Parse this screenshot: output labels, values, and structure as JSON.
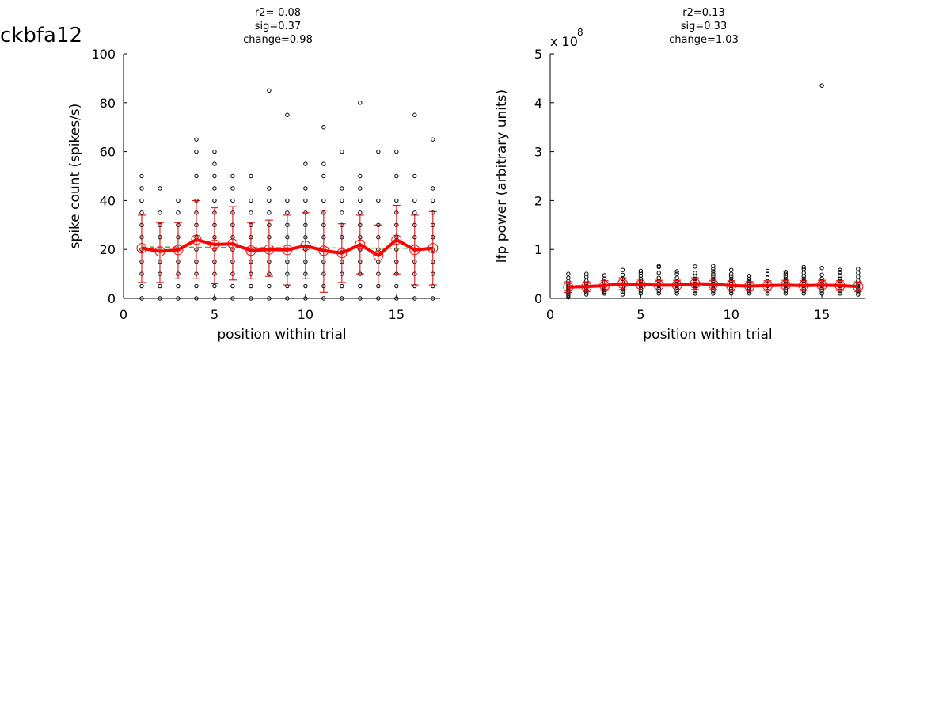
{
  "page": {
    "title": "ckbfa12"
  },
  "chart_data": [
    {
      "type": "scatter",
      "title_lines": [
        "r2=-0.08",
        "sig=0.37",
        "change=0.98"
      ],
      "xlabel": "position within trial",
      "ylabel": "spike count (spikes/s)",
      "exponent_label": "",
      "xlim": [
        0,
        17.4
      ],
      "ylim": [
        0,
        100
      ],
      "xticks": [
        0,
        5,
        10,
        15
      ],
      "yticks": [
        0,
        20,
        40,
        60,
        80,
        100
      ],
      "grid": false,
      "colors": {
        "points": "#000000",
        "mean": "#ff0000",
        "errorbar": "#cc0000",
        "fit": "#33bb33"
      },
      "trials": [
        {
          "x": 1,
          "y": [
            0,
            5,
            10,
            15,
            20,
            25,
            30,
            35,
            40,
            45,
            50
          ]
        },
        {
          "x": 2,
          "y": [
            0,
            5,
            10,
            15,
            20,
            25,
            30,
            35,
            45
          ]
        },
        {
          "x": 3,
          "y": [
            0,
            5,
            10,
            15,
            20,
            25,
            30,
            35,
            40
          ]
        },
        {
          "x": 4,
          "y": [
            0,
            5,
            10,
            15,
            20,
            25,
            30,
            35,
            40,
            50,
            60,
            65
          ]
        },
        {
          "x": 5,
          "y": [
            0,
            5,
            10,
            15,
            20,
            25,
            30,
            35,
            40,
            45,
            50,
            55,
            60
          ]
        },
        {
          "x": 6,
          "y": [
            0,
            5,
            10,
            15,
            20,
            25,
            30,
            35,
            40,
            45,
            50
          ]
        },
        {
          "x": 7,
          "y": [
            0,
            5,
            10,
            15,
            20,
            25,
            30,
            35,
            40,
            50
          ]
        },
        {
          "x": 8,
          "y": [
            0,
            5,
            10,
            15,
            20,
            25,
            30,
            35,
            40,
            45,
            85
          ]
        },
        {
          "x": 9,
          "y": [
            0,
            5,
            10,
            15,
            20,
            25,
            30,
            35,
            40,
            75
          ]
        },
        {
          "x": 10,
          "y": [
            0,
            5,
            10,
            15,
            20,
            25,
            30,
            35,
            40,
            45,
            55
          ]
        },
        {
          "x": 11,
          "y": [
            0,
            5,
            10,
            15,
            20,
            25,
            30,
            35,
            40,
            50,
            55,
            70
          ]
        },
        {
          "x": 12,
          "y": [
            0,
            5,
            10,
            15,
            20,
            25,
            30,
            35,
            40,
            45,
            60
          ]
        },
        {
          "x": 13,
          "y": [
            0,
            5,
            10,
            15,
            20,
            25,
            30,
            35,
            40,
            45,
            50,
            80
          ]
        },
        {
          "x": 14,
          "y": [
            0,
            5,
            10,
            15,
            20,
            25,
            30,
            40,
            60
          ]
        },
        {
          "x": 15,
          "y": [
            0,
            5,
            10,
            15,
            20,
            25,
            30,
            35,
            40,
            50,
            60
          ]
        },
        {
          "x": 16,
          "y": [
            0,
            5,
            10,
            15,
            20,
            25,
            30,
            35,
            40,
            50,
            75
          ]
        },
        {
          "x": 17,
          "y": [
            0,
            5,
            10,
            15,
            20,
            25,
            30,
            35,
            40,
            45,
            65
          ]
        }
      ],
      "mean": {
        "x": [
          1,
          2,
          3,
          4,
          5,
          6,
          7,
          8,
          9,
          10,
          11,
          12,
          13,
          14,
          15,
          16,
          17
        ],
        "y": [
          20.5,
          19.2,
          19.8,
          24.0,
          22.0,
          22.3,
          19.5,
          20.0,
          19.8,
          21.5,
          19.5,
          18.5,
          22.0,
          17.5,
          24.0,
          19.8,
          20.5
        ]
      },
      "error": {
        "low": [
          6.5,
          6.5,
          8.0,
          8.0,
          6.0,
          7.5,
          8.0,
          9.0,
          5.5,
          8.0,
          2.5,
          6.5,
          10.0,
          5.0,
          10.0,
          5.5,
          5.5
        ],
        "high": [
          34.0,
          31.0,
          31.0,
          40.0,
          37.0,
          37.5,
          31.0,
          32.0,
          34.0,
          35.0,
          36.0,
          30.5,
          34.0,
          30.0,
          38.0,
          34.0,
          35.5
        ]
      },
      "fit": {
        "x": [
          1,
          17
        ],
        "y": [
          21.0,
          20.4
        ]
      }
    },
    {
      "type": "scatter",
      "title_lines": [
        "r2=0.13",
        "sig=0.33",
        "change=1.03"
      ],
      "xlabel": "position within trial",
      "ylabel": "lfp power (arbitrary units)",
      "exponent_label": "x 10",
      "exponent": "8",
      "xlim": [
        0,
        17.4
      ],
      "ylim": [
        0,
        5
      ],
      "xticks": [
        0,
        5,
        10,
        15
      ],
      "yticks": [
        0,
        1,
        2,
        3,
        4,
        5
      ],
      "grid": false,
      "colors": {
        "points": "#000000",
        "mean": "#ff0000",
        "errorbar": "#cc0000",
        "fit": "#33bb33"
      },
      "trials": [
        {
          "x": 1,
          "y": [
            0.02,
            0.06,
            0.1,
            0.14,
            0.18,
            0.22,
            0.26,
            0.3,
            0.35,
            0.42,
            0.5
          ]
        },
        {
          "x": 2,
          "y": [
            0.08,
            0.12,
            0.16,
            0.2,
            0.25,
            0.3,
            0.36,
            0.44,
            0.5
          ]
        },
        {
          "x": 3,
          "y": [
            0.1,
            0.14,
            0.18,
            0.22,
            0.28,
            0.34,
            0.4,
            0.47
          ]
        },
        {
          "x": 4,
          "y": [
            0.08,
            0.13,
            0.18,
            0.23,
            0.28,
            0.33,
            0.4,
            0.48,
            0.58
          ]
        },
        {
          "x": 5,
          "y": [
            0.1,
            0.15,
            0.2,
            0.25,
            0.3,
            0.35,
            0.4,
            0.46,
            0.52,
            0.56
          ]
        },
        {
          "x": 6,
          "y": [
            0.1,
            0.15,
            0.2,
            0.25,
            0.3,
            0.36,
            0.42,
            0.52,
            0.64,
            0.66
          ]
        },
        {
          "x": 7,
          "y": [
            0.1,
            0.15,
            0.2,
            0.25,
            0.3,
            0.35,
            0.42,
            0.5,
            0.55
          ]
        },
        {
          "x": 8,
          "y": [
            0.1,
            0.15,
            0.2,
            0.25,
            0.3,
            0.35,
            0.4,
            0.45,
            0.52,
            0.65
          ]
        },
        {
          "x": 9,
          "y": [
            0.1,
            0.15,
            0.2,
            0.25,
            0.3,
            0.35,
            0.4,
            0.45,
            0.5,
            0.55,
            0.6,
            0.66
          ]
        },
        {
          "x": 10,
          "y": [
            0.1,
            0.15,
            0.2,
            0.25,
            0.3,
            0.35,
            0.4,
            0.45,
            0.5,
            0.58
          ]
        },
        {
          "x": 11,
          "y": [
            0.1,
            0.15,
            0.2,
            0.25,
            0.3,
            0.35,
            0.4,
            0.46
          ]
        },
        {
          "x": 12,
          "y": [
            0.1,
            0.15,
            0.2,
            0.25,
            0.3,
            0.35,
            0.42,
            0.5,
            0.56
          ]
        },
        {
          "x": 13,
          "y": [
            0.1,
            0.15,
            0.2,
            0.25,
            0.3,
            0.35,
            0.4,
            0.45,
            0.5,
            0.54
          ]
        },
        {
          "x": 14,
          "y": [
            0.1,
            0.15,
            0.2,
            0.25,
            0.3,
            0.35,
            0.4,
            0.45,
            0.52,
            0.6,
            0.64
          ]
        },
        {
          "x": 15,
          "y": [
            0.1,
            0.15,
            0.2,
            0.25,
            0.3,
            0.35,
            0.4,
            0.48,
            0.62,
            4.35
          ]
        },
        {
          "x": 16,
          "y": [
            0.1,
            0.15,
            0.2,
            0.25,
            0.3,
            0.35,
            0.4,
            0.46,
            0.54,
            0.58
          ]
        },
        {
          "x": 17,
          "y": [
            0.08,
            0.12,
            0.16,
            0.2,
            0.25,
            0.3,
            0.36,
            0.44,
            0.52,
            0.6
          ]
        }
      ],
      "mean": {
        "x": [
          1,
          2,
          3,
          4,
          5,
          6,
          7,
          8,
          9,
          10,
          11,
          12,
          13,
          14,
          15,
          16,
          17
        ],
        "y": [
          0.23,
          0.24,
          0.26,
          0.3,
          0.28,
          0.27,
          0.27,
          0.3,
          0.29,
          0.26,
          0.25,
          0.26,
          0.27,
          0.26,
          0.27,
          0.26,
          0.24
        ]
      },
      "error": {
        "low": [
          0.12,
          0.14,
          0.16,
          0.18,
          0.17,
          0.17,
          0.17,
          0.18,
          0.18,
          0.16,
          0.16,
          0.16,
          0.17,
          0.16,
          0.17,
          0.16,
          0.14
        ],
        "high": [
          0.34,
          0.34,
          0.36,
          0.42,
          0.39,
          0.37,
          0.37,
          0.42,
          0.4,
          0.36,
          0.34,
          0.36,
          0.37,
          0.36,
          0.37,
          0.36,
          0.34
        ]
      },
      "fit": {
        "x": [
          1,
          17
        ],
        "y": [
          0.26,
          0.27
        ]
      }
    }
  ]
}
